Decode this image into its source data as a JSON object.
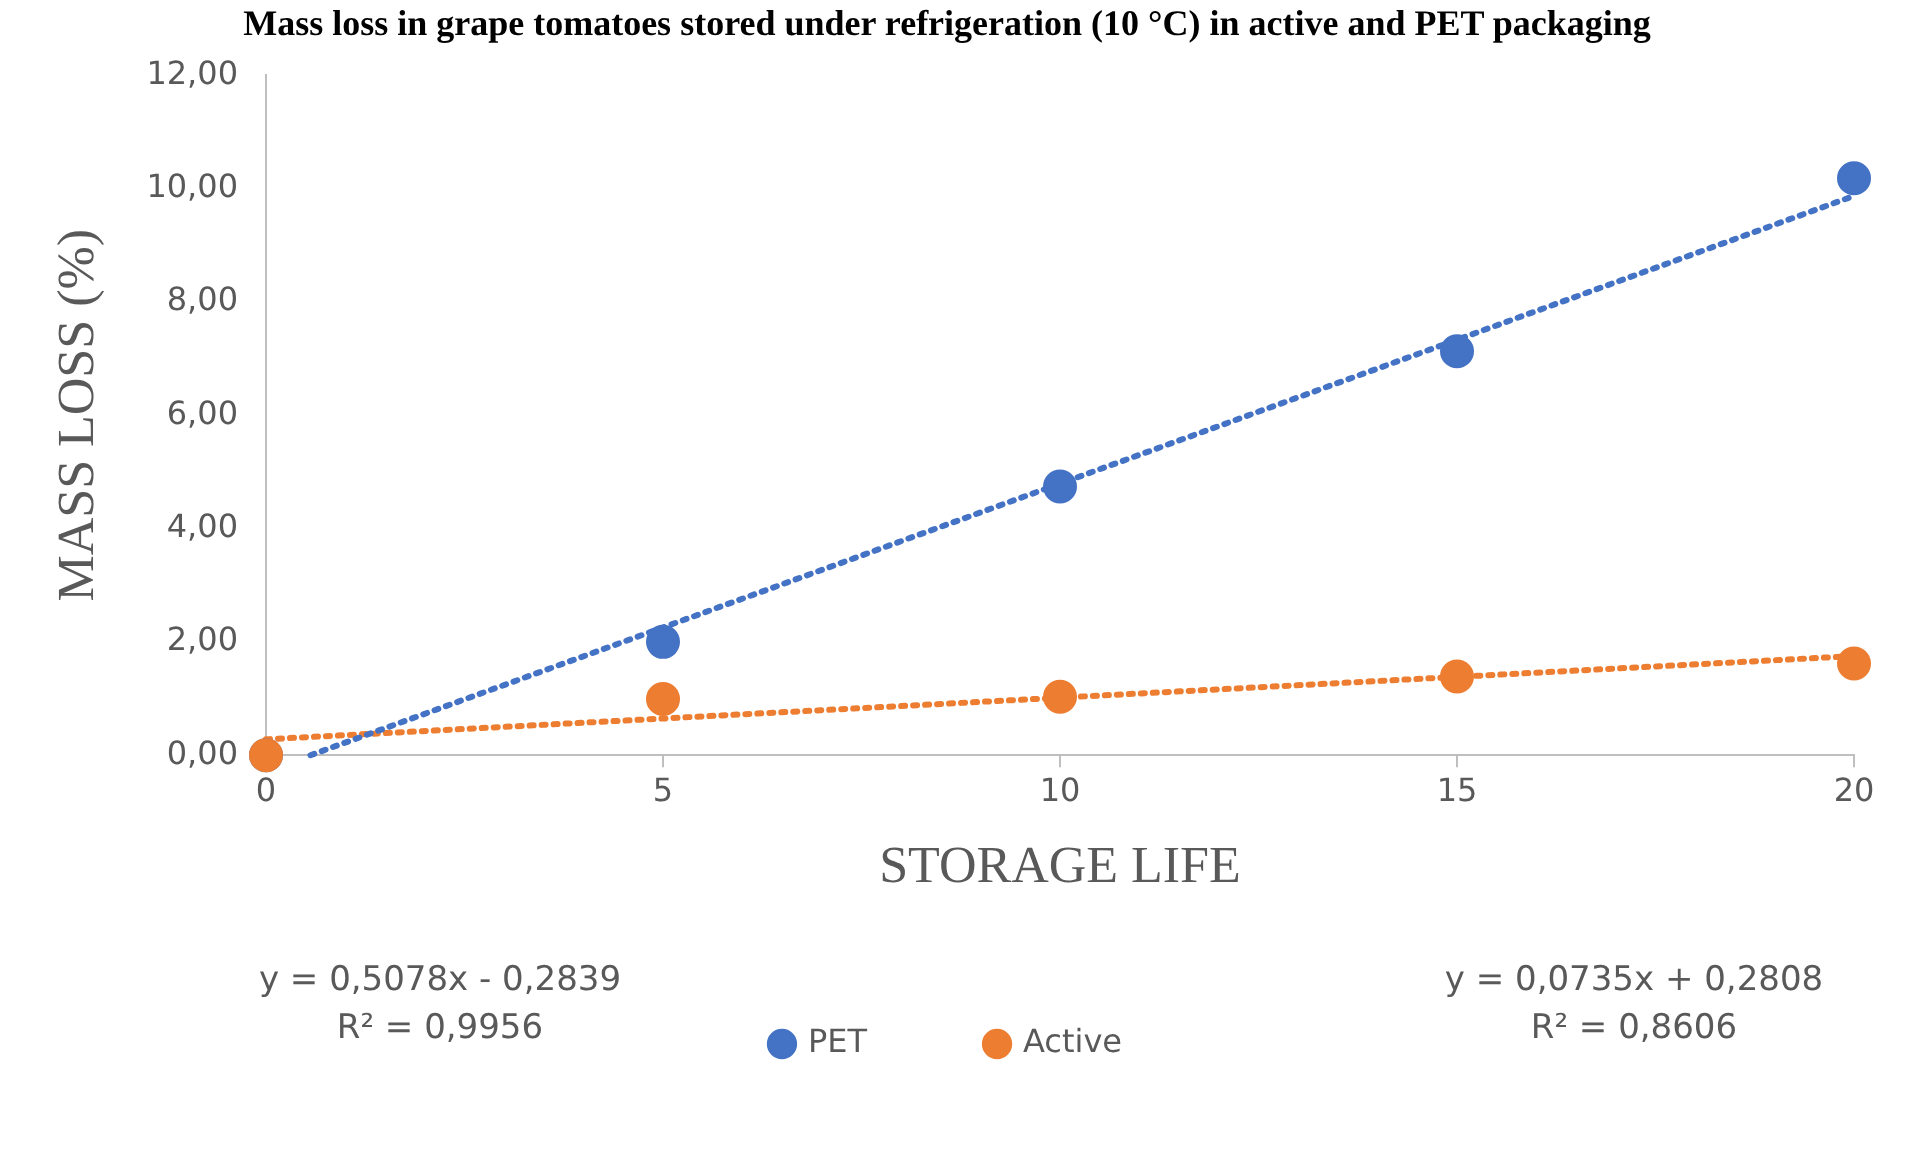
{
  "chart_data": {
    "type": "scatter",
    "title": "Mass loss in grape tomatoes stored under refrigeration (10 °C) in active and PET packaging",
    "xlabel": "STORAGE LIFE",
    "ylabel": "MASS LOSS (%)",
    "x": [
      0,
      5,
      10,
      15,
      20
    ],
    "series": [
      {
        "name": "PET",
        "color": "#4472c4",
        "values": [
          0,
          2.0,
          4.74,
          7.13,
          10.18
        ],
        "marker": "circle"
      },
      {
        "name": "Active",
        "color": "#ed7d31",
        "values": [
          0,
          0.99,
          1.03,
          1.39,
          1.62
        ],
        "marker": "circle"
      },
      {
        "type": "line",
        "color": "#4472c4",
        "x": [
          0.56,
          20
        ],
        "values": [
          0,
          9.87
        ],
        "line_style": "dotted",
        "marker": "none"
      },
      {
        "type": "line",
        "color": "#ed7d31",
        "x": [
          0,
          20
        ],
        "values": [
          0.28,
          1.75
        ],
        "line_style": "dotted",
        "marker": "none"
      }
    ],
    "xlim": [
      0,
      20
    ],
    "xticks": [
      0,
      5,
      10,
      15,
      20
    ],
    "ylim": [
      0,
      12
    ],
    "yticks": [
      {
        "value": 0,
        "label": "0,00"
      },
      {
        "value": 2,
        "label": "2,00"
      },
      {
        "value": 4,
        "label": "4,00"
      },
      {
        "value": 6,
        "label": "6,00"
      },
      {
        "value": 8,
        "label": "8,00"
      },
      {
        "value": 10,
        "label": "10,00"
      },
      {
        "value": 12,
        "label": "12,00"
      }
    ],
    "grid": false,
    "legend": "bottom",
    "annotations": [
      "y = 0,5078x - 0,2839\nR² = 0,9956",
      "y = 0,0735x + 0,2808\nR² = 0,8606"
    ]
  }
}
